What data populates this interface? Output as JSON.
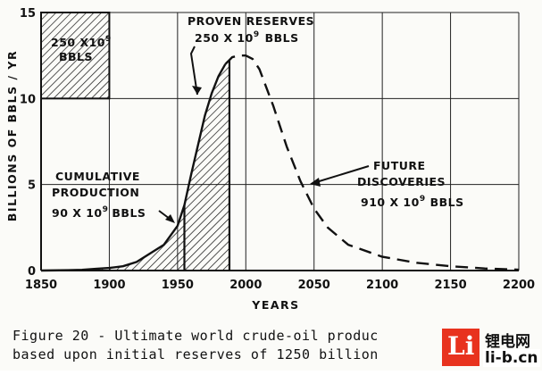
{
  "chart_data": {
    "type": "line",
    "xlabel": "YEARS",
    "ylabel": "BILLIONS OF BBLS / YR",
    "xlim": [
      1850,
      2200
    ],
    "ylim": [
      0,
      15
    ],
    "x_ticks": [
      "1850",
      "1900",
      "1950",
      "2000",
      "2050",
      "2100",
      "2150",
      "2200"
    ],
    "y_ticks": [
      "0",
      "5",
      "10",
      "15"
    ],
    "grid": true,
    "series": [
      {
        "style": "solid",
        "x": [
          1850,
          1870,
          1880,
          1890,
          1900,
          1910,
          1920,
          1930,
          1940,
          1950,
          1955,
          1960,
          1965,
          1970,
          1975,
          1980,
          1985
        ],
        "values": [
          0,
          0.02,
          0.04,
          0.1,
          0.15,
          0.25,
          0.5,
          1.0,
          1.5,
          2.6,
          3.8,
          5.6,
          7.3,
          9.0,
          10.3,
          11.3,
          12.0
        ]
      },
      {
        "style": "dashed",
        "x": [
          1985,
          1990,
          1995,
          2000,
          2005,
          2010,
          2020,
          2030,
          2040,
          2050,
          2060,
          2075,
          2100,
          2125,
          2150,
          2175,
          2200
        ],
        "values": [
          12.0,
          12.4,
          12.5,
          12.5,
          12.3,
          11.7,
          9.6,
          7.2,
          5.2,
          3.6,
          2.5,
          1.5,
          0.8,
          0.45,
          0.25,
          0.12,
          0.05
        ]
      }
    ],
    "shaded_regions": [
      {
        "label": "cumulative production",
        "x_from": 1850,
        "x_to": 1955
      },
      {
        "label": "proven reserves",
        "x_from": 1955,
        "x_to": 1988
      }
    ],
    "legend_box": {
      "x_from": 1850,
      "x_to": 1900,
      "y_from": 10,
      "y_to": 15
    },
    "annotations": {
      "box_line1": "250 X10",
      "box_sup": "9",
      "box_line2": "BBLS",
      "proven_line1": "PROVEN  RESERVES",
      "proven_line2": "250  X 10",
      "proven_sup": "9",
      "proven_unit": "BBLS",
      "cum_line1": "CUMULATIVE",
      "cum_line2": "PRODUCTION",
      "cum_line3": "90 X 10",
      "cum_sup": "9",
      "cum_unit": "BBLS",
      "fut_line1": "FUTURE",
      "fut_line2": "DISCOVERIES",
      "fut_line3": "910 X 10",
      "fut_sup": "9",
      "fut_unit": "BBLS"
    }
  },
  "caption": {
    "line1": "Figure 20 - Ultimate world crude-oil produc",
    "line2": "based upon initial reserves of 1250 billion"
  },
  "watermark": {
    "logo_letter": "Li",
    "cn_text": "锂电网",
    "domain": "li-b.cn"
  }
}
